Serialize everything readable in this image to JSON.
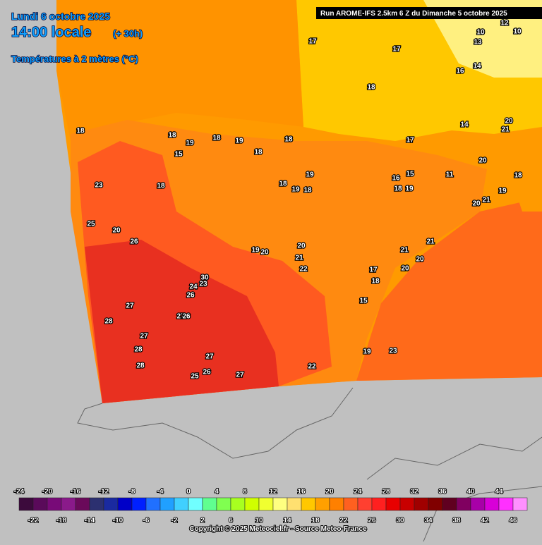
{
  "header": {
    "date": "Lundi 6 octobre 2025",
    "time": "14:00 locale",
    "offset": "(+ 30h)",
    "field": "Températures à 2 mètres (°C)",
    "run": "Run AROME-IFS 2.5km 6 Z du Dimanche 5 octobre 2025"
  },
  "scale": {
    "labels": [
      -24,
      -22,
      -20,
      -18,
      -16,
      -14,
      -12,
      -10,
      -8,
      -6,
      -4,
      -2,
      0,
      2,
      4,
      6,
      8,
      10,
      12,
      14,
      16,
      18,
      20,
      22,
      24,
      26,
      28,
      30,
      32,
      34,
      36,
      38,
      40,
      42,
      44,
      46
    ],
    "colors": [
      "#3c0a3c",
      "#5a0a5a",
      "#780a78",
      "#8a1a8a",
      "#6a0a5a",
      "#2c3070",
      "#1a2aa0",
      "#0000c8",
      "#0020ff",
      "#2070ff",
      "#20a0ff",
      "#40d0ff",
      "#70ffff",
      "#60ff90",
      "#80ff50",
      "#a8ff20",
      "#d0ff00",
      "#f0ff30",
      "#ffff80",
      "#ffe070",
      "#ffc800",
      "#ffa000",
      "#ff8000",
      "#ff6020",
      "#ff4030",
      "#ff2020",
      "#e80000",
      "#c80000",
      "#a00000",
      "#800000",
      "#600020",
      "#800060",
      "#a800a8",
      "#d800d8",
      "#ff30ff",
      "#ff90ff"
    ]
  },
  "map": {
    "labels": [
      17,
      17,
      18,
      18,
      18,
      19,
      15,
      18,
      19,
      18,
      17,
      18,
      23,
      18,
      19,
      18,
      19,
      18,
      16,
      15,
      19,
      18,
      20,
      25,
      20,
      26,
      19,
      20,
      20,
      21,
      22,
      21,
      20,
      21,
      20,
      17,
      18,
      15,
      30,
      24,
      23,
      26,
      27,
      28,
      27,
      27,
      26,
      28,
      28,
      27,
      26,
      25,
      27,
      22,
      19,
      23,
      20,
      21,
      19,
      18,
      10,
      12,
      10,
      14,
      16,
      14,
      21,
      20,
      11,
      13
    ]
  },
  "footer": {
    "copyright": "Copyright © 2025 Meteociel.fr - Source Meteo-France"
  }
}
